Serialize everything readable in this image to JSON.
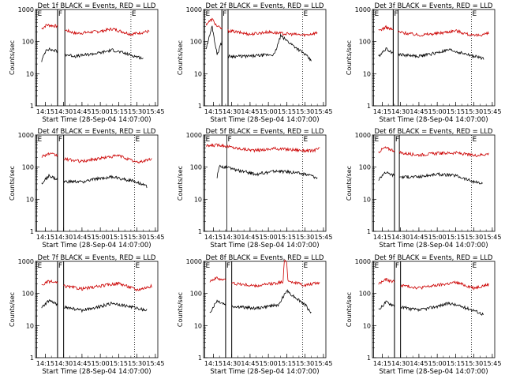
{
  "figure_title": "",
  "chart_data": [
    {
      "type": "line",
      "title": "Det 1f BLACK = Events, RED = LLD",
      "xlabel": "Start Time (28-Sep-04 14:07:00)",
      "ylabel": "Counts/sec",
      "yscale": "log",
      "ylim": [
        1,
        1000
      ],
      "xlim": [
        "14:07",
        "15:47"
      ],
      "x_ticks": [
        "14:15",
        "14:30",
        "14:45",
        "15:00",
        "15:15",
        "15:30",
        "15:45"
      ],
      "y_ticks": [
        "1",
        "10",
        "100",
        "1000"
      ],
      "markers": [
        {
          "label": "E",
          "time": "14:08"
        },
        {
          "label": "F",
          "time": "14:25"
        },
        {
          "label": "E",
          "time": "15:25"
        }
      ],
      "gap": [
        "14:25",
        "14:31"
      ],
      "series": [
        {
          "name": "RED = LLD",
          "color": "#cc0000",
          "x": [
            "14:12",
            "14:16",
            "14:25",
            "14:31",
            "14:40",
            "15:00",
            "15:10",
            "15:25",
            "15:40"
          ],
          "values": [
            250,
            330,
            300,
            230,
            180,
            210,
            250,
            170,
            210
          ]
        },
        {
          "name": "BLACK = Events",
          "color": "#000000",
          "x": [
            "14:12",
            "14:16",
            "14:25",
            "14:31",
            "14:40",
            "15:00",
            "15:10",
            "15:25",
            "15:35"
          ],
          "values": [
            25,
            60,
            50,
            40,
            35,
            45,
            55,
            38,
            30
          ]
        }
      ]
    },
    {
      "type": "line",
      "title": "Det 2f BLACK = Events, RED = LLD",
      "xlabel": "Start Time (28-Sep-04 14:07:00)",
      "ylabel": "Counts/sec",
      "yscale": "log",
      "ylim": [
        1,
        1000
      ],
      "xlim": [
        "14:07",
        "15:47"
      ],
      "x_ticks": [
        "14:15",
        "14:30",
        "14:45",
        "15:00",
        "15:15",
        "15:30",
        "15:45"
      ],
      "y_ticks": [
        "1",
        "10",
        "100",
        "1000"
      ],
      "markers": [
        {
          "label": "E",
          "time": "14:08"
        },
        {
          "label": "F",
          "time": "14:22"
        },
        {
          "label": "E",
          "time": "15:28"
        }
      ],
      "gap": [
        "14:22",
        "14:27"
      ],
      "series": [
        {
          "name": "RED = LLD",
          "color": "#cc0000",
          "x": [
            "14:09",
            "14:14",
            "14:18",
            "14:22",
            "14:27",
            "14:45",
            "15:00",
            "15:10",
            "15:30",
            "15:40"
          ],
          "values": [
            350,
            500,
            300,
            250,
            220,
            170,
            200,
            180,
            160,
            190
          ]
        },
        {
          "name": "BLACK = Events",
          "color": "#000000",
          "x": [
            "14:09",
            "14:14",
            "14:18",
            "14:22",
            "14:27",
            "14:45",
            "15:05",
            "15:10",
            "15:30",
            "15:35"
          ],
          "values": [
            60,
            300,
            40,
            100,
            35,
            35,
            40,
            150,
            40,
            25
          ]
        }
      ]
    },
    {
      "type": "line",
      "title": "Det 3f BLACK = Events, RED = LLD",
      "xlabel": "Start Time (28-Sep-04 14:07:00)",
      "ylabel": "Counts/sec",
      "yscale": "log",
      "ylim": [
        1,
        1000
      ],
      "xlim": [
        "14:07",
        "15:47"
      ],
      "x_ticks": [
        "14:15",
        "14:30",
        "14:45",
        "15:00",
        "15:15",
        "15:30",
        "15:45"
      ],
      "y_ticks": [
        "1",
        "10",
        "100",
        "1000"
      ],
      "markers": [
        {
          "label": "E",
          "time": "14:08"
        },
        {
          "label": "F",
          "time": "14:24"
        },
        {
          "label": "E",
          "time": "15:28"
        }
      ],
      "gap": [
        "14:24",
        "14:28"
      ],
      "series": [
        {
          "name": "RED = LLD",
          "color": "#cc0000",
          "x": [
            "14:12",
            "14:18",
            "14:24",
            "14:28",
            "14:45",
            "15:00",
            "15:15",
            "15:30",
            "15:42"
          ],
          "values": [
            220,
            280,
            230,
            200,
            160,
            180,
            220,
            150,
            180
          ]
        },
        {
          "name": "BLACK = Events",
          "color": "#000000",
          "x": [
            "14:12",
            "14:18",
            "14:24",
            "14:28",
            "14:45",
            "15:00",
            "15:10",
            "15:30",
            "15:38"
          ],
          "values": [
            35,
            60,
            45,
            40,
            35,
            45,
            55,
            35,
            30
          ]
        }
      ]
    },
    {
      "type": "line",
      "title": "Det 4f BLACK = Events, RED = LLD",
      "xlabel": "Start Time (28-Sep-04 14:07:00)",
      "ylabel": "Counts/sec",
      "yscale": "log",
      "ylim": [
        1,
        1000
      ],
      "xlim": [
        "14:07",
        "15:47"
      ],
      "x_ticks": [
        "14:15",
        "14:30",
        "14:45",
        "15:00",
        "15:15",
        "15:30",
        "15:45"
      ],
      "y_ticks": [
        "1",
        "10",
        "100",
        "1000"
      ],
      "markers": [
        {
          "label": "E",
          "time": "14:08"
        },
        {
          "label": "F",
          "time": "14:25"
        },
        {
          "label": "E",
          "time": "15:28"
        }
      ],
      "gap": [
        "14:25",
        "14:30"
      ],
      "series": [
        {
          "name": "RED = LLD",
          "color": "#cc0000",
          "x": [
            "14:12",
            "14:18",
            "14:25",
            "14:30",
            "14:45",
            "15:00",
            "15:15",
            "15:30",
            "15:42"
          ],
          "values": [
            220,
            260,
            230,
            180,
            150,
            190,
            230,
            140,
            180
          ]
        },
        {
          "name": "BLACK = Events",
          "color": "#000000",
          "x": [
            "14:12",
            "14:18",
            "14:25",
            "14:30",
            "14:45",
            "15:00",
            "15:10",
            "15:30",
            "15:38"
          ],
          "values": [
            30,
            55,
            40,
            35,
            35,
            45,
            50,
            35,
            25
          ]
        }
      ]
    },
    {
      "type": "line",
      "title": "Det 5f BLACK = Events, RED = LLD",
      "xlabel": "Start Time (28-Sep-04 14:07:00)",
      "ylabel": "Counts/sec",
      "yscale": "log",
      "ylim": [
        1,
        1000
      ],
      "xlim": [
        "14:07",
        "15:47"
      ],
      "x_ticks": [
        "14:15",
        "14:30",
        "14:45",
        "15:00",
        "15:15",
        "15:30",
        "15:45"
      ],
      "y_ticks": [
        "1",
        "10",
        "100",
        "1000"
      ],
      "markers": [
        {
          "label": "E",
          "time": "14:08"
        },
        {
          "label": "F",
          "time": "14:26"
        },
        {
          "label": "E",
          "time": "15:28"
        }
      ],
      "gap": [],
      "series": [
        {
          "name": "RED = LLD",
          "color": "#cc0000",
          "x": [
            "14:09",
            "14:20",
            "14:35",
            "14:50",
            "15:05",
            "15:20",
            "15:35",
            "15:42"
          ],
          "values": [
            450,
            500,
            380,
            330,
            380,
            350,
            320,
            380
          ]
        },
        {
          "name": "BLACK = Events",
          "color": "#000000",
          "x": [
            "14:18",
            "14:20",
            "14:35",
            "14:50",
            "15:05",
            "15:20",
            "15:35",
            "15:40"
          ],
          "values": [
            50,
            110,
            80,
            60,
            75,
            70,
            55,
            45
          ]
        }
      ]
    },
    {
      "type": "line",
      "title": "Det 6f BLACK = Events, RED = LLD",
      "xlabel": "Start Time (28-Sep-04 14:07:00)",
      "ylabel": "Counts/sec",
      "yscale": "log",
      "ylim": [
        1,
        1000
      ],
      "xlim": [
        "14:07",
        "15:47"
      ],
      "x_ticks": [
        "14:15",
        "14:30",
        "14:45",
        "15:00",
        "15:15",
        "15:30",
        "15:45"
      ],
      "y_ticks": [
        "1",
        "10",
        "100",
        "1000"
      ],
      "markers": [
        {
          "label": "E",
          "time": "14:08"
        },
        {
          "label": "F",
          "time": "14:25"
        },
        {
          "label": "E",
          "time": "15:28"
        }
      ],
      "gap": [
        "14:25",
        "14:29"
      ],
      "series": [
        {
          "name": "RED = LLD",
          "color": "#cc0000",
          "x": [
            "14:12",
            "14:17",
            "14:25",
            "14:29",
            "14:45",
            "15:00",
            "15:15",
            "15:30",
            "15:42"
          ],
          "values": [
            300,
            400,
            330,
            280,
            240,
            270,
            280,
            230,
            260
          ]
        },
        {
          "name": "BLACK = Events",
          "color": "#000000",
          "x": [
            "14:12",
            "14:17",
            "14:25",
            "14:29",
            "14:45",
            "15:00",
            "15:15",
            "15:30",
            "15:37"
          ],
          "values": [
            40,
            70,
            55,
            50,
            50,
            60,
            55,
            35,
            30
          ]
        }
      ]
    },
    {
      "type": "line",
      "title": "Det 7f BLACK = Events, RED = LLD",
      "xlabel": "Start Time (28-Sep-04 14:07:00)",
      "ylabel": "Counts/sec",
      "yscale": "log",
      "ylim": [
        1,
        1000
      ],
      "xlim": [
        "14:07",
        "15:47"
      ],
      "x_ticks": [
        "14:15",
        "14:30",
        "14:45",
        "15:00",
        "15:15",
        "15:30",
        "15:45"
      ],
      "y_ticks": [
        "1",
        "10",
        "100",
        "1000"
      ],
      "markers": [
        {
          "label": "E",
          "time": "14:08"
        },
        {
          "label": "F",
          "time": "14:25"
        },
        {
          "label": "E",
          "time": "15:28"
        }
      ],
      "gap": [
        "14:25",
        "14:30"
      ],
      "series": [
        {
          "name": "RED = LLD",
          "color": "#cc0000",
          "x": [
            "14:12",
            "14:18",
            "14:25",
            "14:30",
            "14:45",
            "15:00",
            "15:15",
            "15:30",
            "15:42"
          ],
          "values": [
            180,
            240,
            210,
            170,
            140,
            170,
            210,
            130,
            170
          ]
        },
        {
          "name": "BLACK = Events",
          "color": "#000000",
          "x": [
            "14:12",
            "14:18",
            "14:25",
            "14:30",
            "14:45",
            "15:00",
            "15:10",
            "15:30",
            "15:38"
          ],
          "values": [
            35,
            60,
            45,
            38,
            30,
            40,
            50,
            35,
            30
          ]
        }
      ]
    },
    {
      "type": "line",
      "title": "Det 8f BLACK = Events, RED = LLD",
      "xlabel": "Start Time (28-Sep-04 14:07:00)",
      "ylabel": "Counts/sec",
      "yscale": "log",
      "ylim": [
        1,
        1000
      ],
      "xlim": [
        "14:07",
        "15:47"
      ],
      "x_ticks": [
        "14:15",
        "14:30",
        "14:45",
        "15:00",
        "15:15",
        "15:30",
        "15:45"
      ],
      "y_ticks": [
        "1",
        "10",
        "100",
        "1000"
      ],
      "markers": [
        {
          "label": "E",
          "time": "14:08"
        },
        {
          "label": "F",
          "time": "14:25"
        },
        {
          "label": "E",
          "time": "15:28"
        }
      ],
      "gap": [
        "14:25",
        "14:30"
      ],
      "series": [
        {
          "name": "RED = LLD",
          "color": "#cc0000",
          "x": [
            "14:12",
            "14:18",
            "14:25",
            "14:30",
            "14:50",
            "15:12",
            "15:13",
            "15:15",
            "15:16",
            "15:30",
            "15:42"
          ],
          "values": [
            250,
            300,
            260,
            210,
            170,
            230,
            1000,
            1000,
            250,
            180,
            220
          ]
        },
        {
          "name": "BLACK = Events",
          "color": "#000000",
          "x": [
            "14:12",
            "14:18",
            "14:25",
            "14:30",
            "14:50",
            "15:09",
            "15:12",
            "15:15",
            "15:30",
            "15:35"
          ],
          "values": [
            25,
            60,
            45,
            40,
            35,
            45,
            80,
            120,
            45,
            25
          ]
        }
      ]
    },
    {
      "type": "line",
      "title": "Det 9f BLACK = Events, RED = LLD",
      "xlabel": "Start Time (28-Sep-04 14:07:00)",
      "ylabel": "Counts/sec",
      "yscale": "log",
      "ylim": [
        1,
        1000
      ],
      "xlim": [
        "14:07",
        "15:47"
      ],
      "x_ticks": [
        "14:15",
        "14:30",
        "14:45",
        "15:00",
        "15:15",
        "15:30",
        "15:45"
      ],
      "y_ticks": [
        "1",
        "10",
        "100",
        "1000"
      ],
      "markers": [
        {
          "label": "E",
          "time": "14:08"
        },
        {
          "label": "F",
          "time": "14:25"
        },
        {
          "label": "E",
          "time": "15:28"
        }
      ],
      "gap": [
        "14:25",
        "14:30"
      ],
      "series": [
        {
          "name": "RED = LLD",
          "color": "#cc0000",
          "x": [
            "14:12",
            "14:18",
            "14:25",
            "14:30",
            "14:45",
            "15:00",
            "15:15",
            "15:30",
            "15:42"
          ],
          "values": [
            200,
            270,
            230,
            180,
            150,
            180,
            220,
            150,
            190
          ]
        },
        {
          "name": "BLACK = Events",
          "color": "#000000",
          "x": [
            "14:12",
            "14:18",
            "14:25",
            "14:30",
            "14:45",
            "15:00",
            "15:10",
            "15:30",
            "15:38"
          ],
          "values": [
            30,
            55,
            42,
            38,
            30,
            40,
            50,
            30,
            22
          ]
        }
      ]
    }
  ]
}
